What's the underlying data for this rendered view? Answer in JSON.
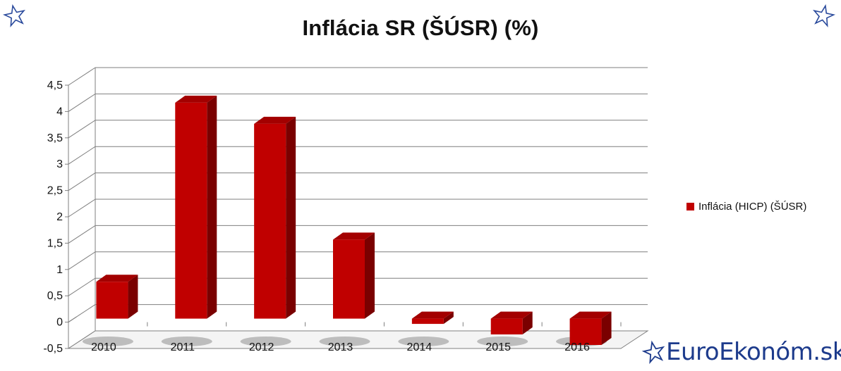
{
  "colors": {
    "bar_front": "#c00000",
    "bar_side": "#7a0000",
    "bar_top": "#a30000",
    "grid": "#7f7f7f",
    "brand": "#1d3b8c"
  },
  "icons": {
    "corner_left": "star-outline-icon",
    "corner_right": "star-outline-icon",
    "brand": "star-outline-icon"
  },
  "brand": {
    "text": "EuroEkonóm.sk"
  },
  "chart_data": {
    "type": "bar",
    "title": "Inflácia SR (ŠÚSR) (%)",
    "xlabel": "",
    "ylabel": "",
    "categories": [
      "2010",
      "2011",
      "2012",
      "2013",
      "2014",
      "2015",
      "2016"
    ],
    "series": [
      {
        "name": "Inflácia (HICP) (ŠÚSR)",
        "values": [
          0.7,
          4.1,
          3.7,
          1.5,
          -0.1,
          -0.3,
          -0.5
        ]
      }
    ],
    "ylim": [
      -0.5,
      4.5
    ],
    "yticks": [
      "-0,5",
      "0",
      "0,5",
      "1",
      "1,5",
      "2",
      "2,5",
      "3",
      "3,5",
      "4",
      "4,5"
    ],
    "grid": true,
    "legend_position": "right",
    "style": "3d"
  }
}
